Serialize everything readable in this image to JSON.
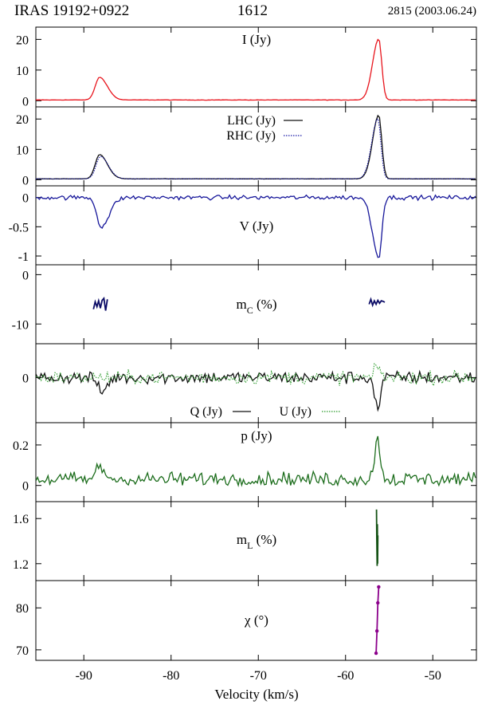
{
  "header": {
    "source": "IRAS 19192+0922",
    "frequency": "1612",
    "observation": "2815 (2003.06.24)"
  },
  "chart_data": {
    "type": "line",
    "x_range": [
      -95.5,
      -45
    ],
    "x_ticks": [
      -90,
      -80,
      -70,
      -60,
      -50
    ],
    "x_tick_labels": [
      "-90",
      "-80",
      "-70",
      "-60",
      "-50"
    ],
    "xlabel": "Velocity (km/s)",
    "grid": false,
    "panels": [
      {
        "key": "I",
        "label_main": "I (Jy)",
        "ylim": [
          -2,
          24
        ],
        "yticks": [
          0,
          10,
          20
        ],
        "ytick_labels": [
          "0",
          "10",
          "20"
        ],
        "series": [
          {
            "name": "I (Jy)",
            "color": "#e8141c",
            "style": "solid",
            "peaks": [
              {
                "v": -88.2,
                "amp": 7.4,
                "wl": 0.5,
                "wr": 0.9
              },
              {
                "v": -56.2,
                "amp": 20.0,
                "wl": 0.7,
                "wr": 0.35
              }
            ],
            "baseline": 0.25,
            "noise": 0.06
          }
        ]
      },
      {
        "key": "LHC_RHC",
        "ylim": [
          -2,
          24
        ],
        "yticks": [
          0,
          10,
          20
        ],
        "ytick_labels": [
          "0",
          "10",
          "20"
        ],
        "legend": [
          {
            "label": "LHC (Jy)",
            "style": "solid"
          },
          {
            "label": "RHC (Jy)",
            "style": "dotted"
          }
        ],
        "series": [
          {
            "name": "LHC (Jy)",
            "color": "#111111",
            "style": "solid",
            "peaks": [
              {
                "v": -88.2,
                "amp": 8.0,
                "wl": 0.5,
                "wr": 0.9
              },
              {
                "v": -56.2,
                "amp": 21.0,
                "wl": 0.7,
                "wr": 0.35
              }
            ],
            "baseline": 0.3,
            "noise": 0.06
          },
          {
            "name": "RHC (Jy)",
            "color": "#1a1aa8",
            "style": "dotted",
            "peaks": [
              {
                "v": -88.1,
                "amp": 7.4,
                "wl": 0.5,
                "wr": 0.9
              },
              {
                "v": -56.3,
                "amp": 19.8,
                "wl": 0.7,
                "wr": 0.35
              }
            ],
            "baseline": 0.3,
            "noise": 0.06
          }
        ]
      },
      {
        "key": "V",
        "label_main": "V (Jy)",
        "ylim": [
          -1.15,
          0.2
        ],
        "yticks": [
          0,
          -0.5,
          -1
        ],
        "ytick_labels": [
          "0",
          "-0.5",
          "-1"
        ],
        "series": [
          {
            "name": "V (Jy)",
            "color": "#16169a",
            "style": "solid",
            "peaks": [
              {
                "v": -88.0,
                "amp": -0.5,
                "wl": 0.5,
                "wr": 0.9
              },
              {
                "v": -56.2,
                "amp": -1.02,
                "wl": 0.7,
                "wr": 0.35
              }
            ],
            "baseline": 0.0,
            "noise": 0.035
          }
        ]
      },
      {
        "key": "mC",
        "label_main": "m",
        "label_sub": "C",
        "label_unit": " (%)",
        "ylim": [
          -14,
          2
        ],
        "yticks": [
          0,
          -10
        ],
        "ytick_labels": [
          "0",
          "-10"
        ],
        "series": [
          {
            "name": "mC",
            "color": "#0b0b66",
            "style": "solid",
            "segments": [
              {
                "x": [
                  -88.9,
                  -88.7,
                  -88.5,
                  -88.3,
                  -88.1,
                  -87.9,
                  -87.7,
                  -87.5,
                  -87.3
                ],
                "y": [
                  -7.0,
                  -5.5,
                  -6.5,
                  -5.3,
                  -6.8,
                  -5.2,
                  -4.8,
                  -7.3,
                  -5.0
                ]
              },
              {
                "x": [
                  -57.3,
                  -57.1,
                  -56.9,
                  -56.7,
                  -56.5,
                  -56.3,
                  -56.1,
                  -55.9,
                  -55.7,
                  -55.5
                ],
                "y": [
                  -6.0,
                  -5.0,
                  -6.2,
                  -5.3,
                  -6.0,
                  -5.2,
                  -5.8,
                  -5.3,
                  -5.4,
                  -5.6
                ]
              }
            ]
          }
        ]
      },
      {
        "key": "QU",
        "ylim": [
          -0.6,
          0.45
        ],
        "yticks": [
          0
        ],
        "ytick_labels": [
          "0"
        ],
        "legend": [
          {
            "label": "Q (Jy)",
            "style": "solid"
          },
          {
            "label": "U (Jy)",
            "style": "dotted"
          }
        ],
        "series": [
          {
            "name": "Q (Jy)",
            "color": "#111111",
            "style": "solid",
            "peaks": [
              {
                "v": -88.0,
                "amp": -0.2,
                "wl": 0.4,
                "wr": 0.6
              },
              {
                "v": -56.3,
                "amp": -0.42,
                "wl": 0.35,
                "wr": 0.3
              }
            ],
            "baseline": 0.0,
            "noise": 0.08
          },
          {
            "name": "U (Jy)",
            "color": "#2a9a2a",
            "style": "dotted",
            "peaks": [
              {
                "v": -56.3,
                "amp": 0.15,
                "wl": 0.3,
                "wr": 0.3
              }
            ],
            "baseline": 0.0,
            "noise": 0.08
          }
        ]
      },
      {
        "key": "p",
        "label_main": "p (Jy)",
        "ylim": [
          -0.08,
          0.31
        ],
        "yticks": [
          0,
          0.2
        ],
        "ytick_labels": [
          "0",
          "0.2"
        ],
        "series": [
          {
            "name": "p (Jy)",
            "color": "#1c6d1c",
            "style": "solid",
            "peaks": [
              {
                "v": -88.2,
                "amp": 0.06,
                "wl": 0.4,
                "wr": 0.6
              },
              {
                "v": -56.3,
                "amp": 0.2,
                "wl": 0.35,
                "wr": 0.3
              }
            ],
            "baseline": 0.03,
            "noise": 0.035,
            "positive": true
          }
        ]
      },
      {
        "key": "mL",
        "label_main": "m",
        "label_sub": "L",
        "label_unit": " (%)",
        "ylim": [
          1.05,
          1.75
        ],
        "yticks": [
          1.2,
          1.6
        ],
        "ytick_labels": [
          "1.2",
          "1.6"
        ],
        "series": [
          {
            "name": "mL",
            "color": "#145214",
            "style": "solid",
            "segments": [
              {
                "x": [
                  -56.45,
                  -56.42,
                  -56.38,
                  -56.35,
                  -56.32,
                  -56.3
                ],
                "y": [
                  1.68,
                  1.45,
                  1.18,
                  1.55,
                  1.2,
                  1.45
                ]
              }
            ]
          }
        ]
      },
      {
        "key": "chi",
        "label_main": "χ (°)",
        "ylim": [
          67.5,
          86.5
        ],
        "yticks": [
          70,
          80
        ],
        "ytick_labels": [
          "70",
          "80"
        ],
        "series": [
          {
            "name": "chi",
            "color": "#8b008b",
            "style": "solid",
            "markers": true,
            "segments": [
              {
                "x": [
                  -56.5,
                  -56.4,
                  -56.3,
                  -56.2
                ],
                "y": [
                  69.2,
                  74.5,
                  81.2,
                  85.0
                ]
              }
            ]
          }
        ]
      }
    ]
  }
}
